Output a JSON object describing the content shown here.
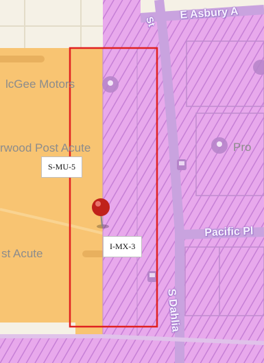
{
  "map": {
    "pois": {
      "mcgee_motors": "lcGee Motors",
      "norwood_post_acute": "rwood Post Acute",
      "post_acute": "st Acute",
      "pro": "Pro"
    },
    "streets": {
      "e_asbury": "E Asbury A",
      "pacific_pl": "Pacific Pl",
      "s_dahlia": "S Dahlia",
      "st_fragment": "St"
    },
    "zones": {
      "left": "S-MU-5",
      "right": "I-MX-3"
    },
    "colors": {
      "base": "#f5f1e6",
      "zone_s_mu_5": "#f8c472",
      "zone_i_mx_3": "#e8a9ec",
      "hatch": "#c67fd6",
      "selection": "#e02020",
      "pin": "#c0221b"
    },
    "icons": [
      "pin-icon",
      "place-icon",
      "transit-icon"
    ]
  }
}
